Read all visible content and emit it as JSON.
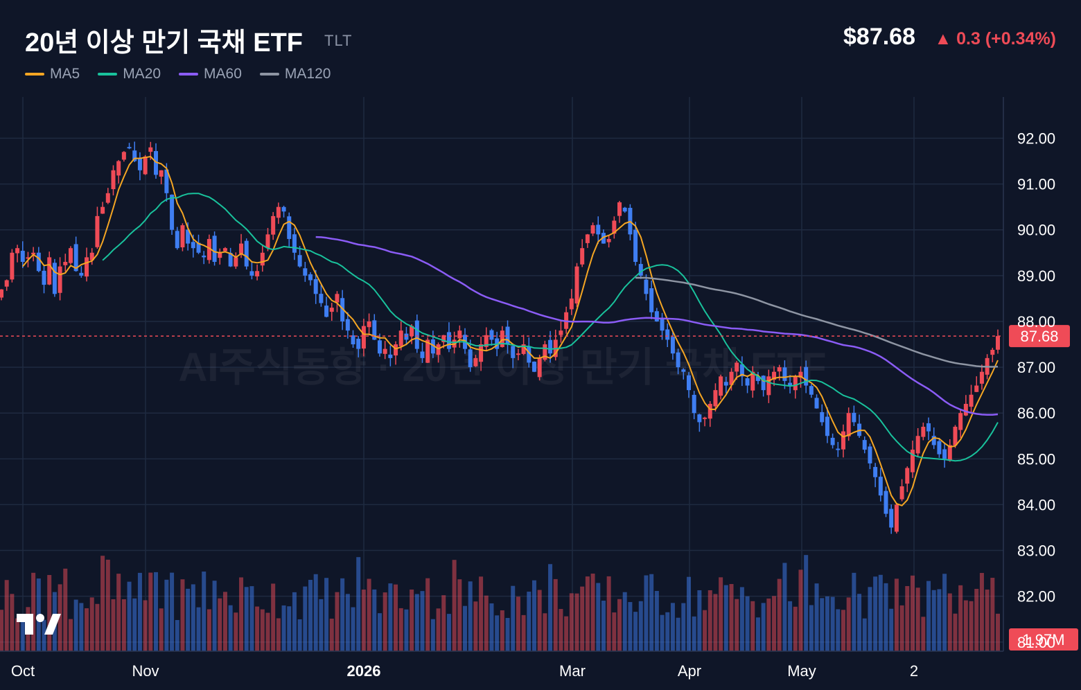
{
  "header": {
    "title": "20년 이상 만기 국채 ETF",
    "ticker": "TLT",
    "price": "$87.68",
    "change": "▲ 0.3 (+0.34%)"
  },
  "colors": {
    "background": "#0f1628",
    "up": "#ef4b57",
    "down": "#3f7ef2",
    "ma5": "#f5a623",
    "ma20": "#19c29c",
    "ma60": "#8b5cf6",
    "ma120": "#8e95a3",
    "grid": "#1f2a40",
    "axis_text": "#ffffff"
  },
  "legend": [
    {
      "label": "MA5",
      "color": "#f5a623"
    },
    {
      "label": "MA20",
      "color": "#19c29c"
    },
    {
      "label": "MA60",
      "color": "#8b5cf6"
    },
    {
      "label": "MA120",
      "color": "#8e95a3"
    }
  ],
  "watermark": "AI주식동향 · 20년 이상 만기 국채 ETF",
  "logo_icon": "tradingview-logo-icon",
  "chart_data": {
    "type": "candlestick",
    "y_axis": {
      "min": 80.8,
      "max": 92.9,
      "ticks": [
        "92.00",
        "91.00",
        "90.00",
        "89.00",
        "88.00",
        "87.00",
        "86.00",
        "85.00",
        "84.00",
        "83.00",
        "82.00",
        "81.00"
      ]
    },
    "x_axis": {
      "ticks": [
        "Oct",
        "Nov",
        "2026",
        "Mar",
        "Apr",
        "May",
        "2"
      ],
      "bold_ticks": [
        "2026"
      ]
    },
    "last_price": 87.68,
    "last_price_label": "87.68",
    "volume_label": "1.97M",
    "close_prices": [
      88.7,
      88.9,
      89.5,
      89.6,
      89.3,
      89.4,
      89.5,
      89.1,
      88.8,
      89.4,
      88.6,
      89.2,
      89.3,
      89.6,
      89.1,
      89.0,
      89.4,
      89.5,
      90.3,
      90.5,
      90.8,
      91.3,
      91.5,
      91.7,
      91.8,
      91.5,
      91.3,
      91.6,
      91.8,
      91.2,
      91.3,
      90.8,
      90.0,
      89.6,
      90.1,
      89.7,
      89.6,
      89.5,
      89.4,
      89.8,
      89.3,
      89.5,
      89.6,
      89.2,
      89.4,
      89.7,
      89.2,
      89.0,
      89.1,
      89.5,
      89.9,
      90.3,
      90.5,
      90.4,
      89.8,
      89.5,
      89.2,
      89.0,
      88.9,
      88.6,
      88.4,
      88.1,
      88.3,
      88.6,
      88.0,
      87.8,
      87.5,
      87.4,
      87.9,
      88.0,
      87.6,
      87.3,
      87.4,
      87.2,
      87.5,
      87.8,
      87.6,
      87.9,
      87.4,
      87.2,
      87.6,
      87.3,
      87.5,
      87.7,
      87.4,
      87.6,
      87.8,
      87.4,
      87.0,
      87.2,
      87.5,
      87.7,
      87.6,
      87.4,
      87.8,
      87.5,
      87.2,
      87.3,
      87.5,
      87.1,
      86.9,
      87.2,
      87.5,
      87.3,
      87.6,
      87.8,
      88.2,
      88.5,
      89.2,
      89.6,
      89.9,
      90.1,
      89.9,
      89.7,
      89.8,
      90.2,
      90.6,
      90.4,
      89.9,
      89.3,
      89.0,
      88.6,
      88.2,
      88.0,
      87.8,
      87.6,
      87.3,
      87.0,
      86.9,
      86.5,
      86.0,
      85.8,
      85.9,
      86.2,
      86.5,
      86.8,
      86.6,
      86.9,
      87.1,
      86.8,
      86.6,
      86.9,
      86.7,
      86.5,
      86.8,
      86.9,
      87.0,
      86.7,
      86.6,
      86.8,
      86.9,
      86.6,
      86.4,
      86.1,
      85.8,
      85.5,
      85.3,
      85.2,
      85.6,
      86.0,
      85.8,
      85.5,
      85.2,
      84.9,
      84.6,
      84.2,
      83.8,
      83.5,
      84.0,
      84.4,
      84.8,
      85.2,
      85.5,
      85.7,
      85.6,
      85.3,
      85.1,
      85.0,
      85.3,
      85.7,
      86.0,
      86.2,
      86.4,
      86.6,
      86.9,
      87.2,
      87.38,
      87.68
    ]
  }
}
